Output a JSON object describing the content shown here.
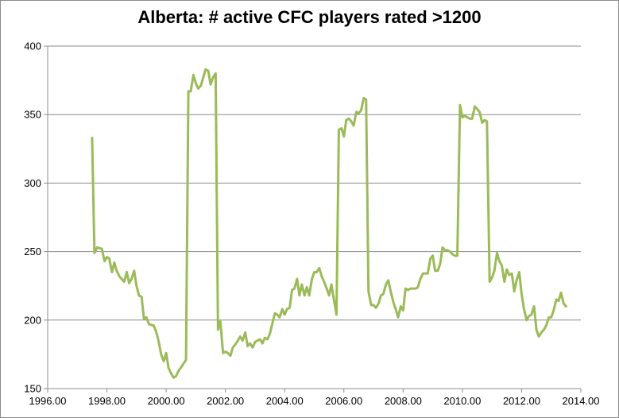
{
  "chart_data": {
    "type": "line",
    "title": "Alberta:  # active CFC players rated >1200",
    "xlabel": "",
    "ylabel": "",
    "xlim": [
      1996.0,
      2014.0
    ],
    "ylim": [
      150,
      400
    ],
    "x_ticks": [
      "1996.00",
      "1998.00",
      "2000.00",
      "2002.00",
      "2004.00",
      "2006.00",
      "2008.00",
      "2010.00",
      "2012.00",
      "2014.00"
    ],
    "y_ticks": [
      "150",
      "200",
      "250",
      "300",
      "350",
      "400"
    ],
    "grid": "horizontal",
    "legend": "none",
    "series": [
      {
        "color": "#9bbb59",
        "points": [
          [
            1997.5,
            333
          ],
          [
            1997.58,
            249
          ],
          [
            1997.67,
            253
          ],
          [
            1997.83,
            252
          ],
          [
            1997.92,
            243
          ],
          [
            1998.0,
            246
          ],
          [
            1998.08,
            245
          ],
          [
            1998.17,
            235
          ],
          [
            1998.25,
            242
          ],
          [
            1998.33,
            236
          ],
          [
            1998.42,
            232
          ],
          [
            1998.58,
            228
          ],
          [
            1998.67,
            235
          ],
          [
            1998.75,
            227
          ],
          [
            1998.83,
            230
          ],
          [
            1998.92,
            236
          ],
          [
            1999.0,
            225
          ],
          [
            1999.08,
            218
          ],
          [
            1999.17,
            217
          ],
          [
            1999.25,
            201
          ],
          [
            1999.33,
            202
          ],
          [
            1999.42,
            197
          ],
          [
            1999.58,
            196
          ],
          [
            1999.67,
            191
          ],
          [
            1999.75,
            184
          ],
          [
            1999.83,
            175
          ],
          [
            1999.92,
            170
          ],
          [
            2000.0,
            176
          ],
          [
            2000.08,
            165
          ],
          [
            2000.17,
            161
          ],
          [
            2000.25,
            158
          ],
          [
            2000.33,
            159
          ],
          [
            2000.42,
            163
          ],
          [
            2000.58,
            168
          ],
          [
            2000.67,
            171
          ],
          [
            2000.75,
            367
          ],
          [
            2000.83,
            367
          ],
          [
            2000.92,
            379
          ],
          [
            2001.0,
            373
          ],
          [
            2001.08,
            369
          ],
          [
            2001.17,
            371
          ],
          [
            2001.25,
            377
          ],
          [
            2001.33,
            383
          ],
          [
            2001.42,
            382
          ],
          [
            2001.5,
            372
          ],
          [
            2001.58,
            377
          ],
          [
            2001.67,
            380
          ],
          [
            2001.75,
            193
          ],
          [
            2001.83,
            199
          ],
          [
            2001.92,
            176
          ],
          [
            2002.0,
            177
          ],
          [
            2002.08,
            176
          ],
          [
            2002.17,
            174
          ],
          [
            2002.25,
            180
          ],
          [
            2002.33,
            182
          ],
          [
            2002.42,
            185
          ],
          [
            2002.5,
            188
          ],
          [
            2002.58,
            185
          ],
          [
            2002.67,
            191
          ],
          [
            2002.75,
            181
          ],
          [
            2002.83,
            183
          ],
          [
            2002.92,
            180
          ],
          [
            2003.0,
            184
          ],
          [
            2003.08,
            185
          ],
          [
            2003.17,
            186
          ],
          [
            2003.25,
            183
          ],
          [
            2003.33,
            187
          ],
          [
            2003.42,
            186
          ],
          [
            2003.5,
            190
          ],
          [
            2003.58,
            197
          ],
          [
            2003.67,
            205
          ],
          [
            2003.75,
            204
          ],
          [
            2003.83,
            202
          ],
          [
            2003.92,
            208
          ],
          [
            2004.0,
            204
          ],
          [
            2004.08,
            208
          ],
          [
            2004.17,
            209
          ],
          [
            2004.25,
            222
          ],
          [
            2004.33,
            223
          ],
          [
            2004.42,
            230
          ],
          [
            2004.5,
            218
          ],
          [
            2004.58,
            226
          ],
          [
            2004.67,
            218
          ],
          [
            2004.75,
            224
          ],
          [
            2004.83,
            218
          ],
          [
            2004.92,
            230
          ],
          [
            2005.0,
            235
          ],
          [
            2005.08,
            235
          ],
          [
            2005.17,
            238
          ],
          [
            2005.25,
            232
          ],
          [
            2005.33,
            228
          ],
          [
            2005.42,
            223
          ],
          [
            2005.5,
            218
          ],
          [
            2005.58,
            226
          ],
          [
            2005.67,
            214
          ],
          [
            2005.75,
            204
          ],
          [
            2005.83,
            339
          ],
          [
            2005.92,
            340
          ],
          [
            2006.0,
            334
          ],
          [
            2006.08,
            346
          ],
          [
            2006.17,
            347
          ],
          [
            2006.25,
            345
          ],
          [
            2006.33,
            342
          ],
          [
            2006.42,
            352
          ],
          [
            2006.5,
            351
          ],
          [
            2006.58,
            353
          ],
          [
            2006.67,
            362
          ],
          [
            2006.75,
            361
          ],
          [
            2006.83,
            221
          ],
          [
            2006.92,
            211
          ],
          [
            2007.0,
            211
          ],
          [
            2007.08,
            209
          ],
          [
            2007.17,
            212
          ],
          [
            2007.25,
            218
          ],
          [
            2007.33,
            219
          ],
          [
            2007.42,
            226
          ],
          [
            2007.5,
            229
          ],
          [
            2007.58,
            221
          ],
          [
            2007.67,
            213
          ],
          [
            2007.75,
            208
          ],
          [
            2007.83,
            202
          ],
          [
            2007.92,
            210
          ],
          [
            2008.0,
            207
          ],
          [
            2008.08,
            223
          ],
          [
            2008.17,
            222
          ],
          [
            2008.25,
            223
          ],
          [
            2008.33,
            223
          ],
          [
            2008.42,
            223
          ],
          [
            2008.5,
            224
          ],
          [
            2008.58,
            230
          ],
          [
            2008.67,
            234
          ],
          [
            2008.75,
            234
          ],
          [
            2008.83,
            234
          ],
          [
            2008.92,
            245
          ],
          [
            2009.0,
            247
          ],
          [
            2009.08,
            236
          ],
          [
            2009.17,
            236
          ],
          [
            2009.25,
            241
          ],
          [
            2009.33,
            253
          ],
          [
            2009.42,
            251
          ],
          [
            2009.5,
            251
          ],
          [
            2009.58,
            250
          ],
          [
            2009.67,
            248
          ],
          [
            2009.75,
            247
          ],
          [
            2009.83,
            247
          ],
          [
            2009.92,
            357
          ],
          [
            2010.0,
            348
          ],
          [
            2010.08,
            349
          ],
          [
            2010.17,
            348
          ],
          [
            2010.25,
            347
          ],
          [
            2010.33,
            347
          ],
          [
            2010.42,
            356
          ],
          [
            2010.5,
            354
          ],
          [
            2010.58,
            352
          ],
          [
            2010.67,
            344
          ],
          [
            2010.75,
            346
          ],
          [
            2010.83,
            345
          ],
          [
            2010.92,
            228
          ],
          [
            2011.0,
            231
          ],
          [
            2011.08,
            236
          ],
          [
            2011.17,
            249
          ],
          [
            2011.25,
            243
          ],
          [
            2011.33,
            240
          ],
          [
            2011.42,
            228
          ],
          [
            2011.5,
            237
          ],
          [
            2011.58,
            233
          ],
          [
            2011.67,
            234
          ],
          [
            2011.75,
            221
          ],
          [
            2011.83,
            229
          ],
          [
            2011.92,
            235
          ],
          [
            2012.0,
            219
          ],
          [
            2012.08,
            208
          ],
          [
            2012.17,
            200
          ],
          [
            2012.25,
            203
          ],
          [
            2012.33,
            204
          ],
          [
            2012.42,
            210
          ],
          [
            2012.5,
            193
          ],
          [
            2012.58,
            188
          ],
          [
            2012.67,
            191
          ],
          [
            2012.75,
            193
          ],
          [
            2012.83,
            196
          ],
          [
            2012.92,
            202
          ],
          [
            2013.0,
            202
          ],
          [
            2013.08,
            207
          ],
          [
            2013.17,
            215
          ],
          [
            2013.25,
            214
          ],
          [
            2013.33,
            220
          ],
          [
            2013.42,
            212
          ],
          [
            2013.5,
            210
          ]
        ]
      }
    ]
  }
}
